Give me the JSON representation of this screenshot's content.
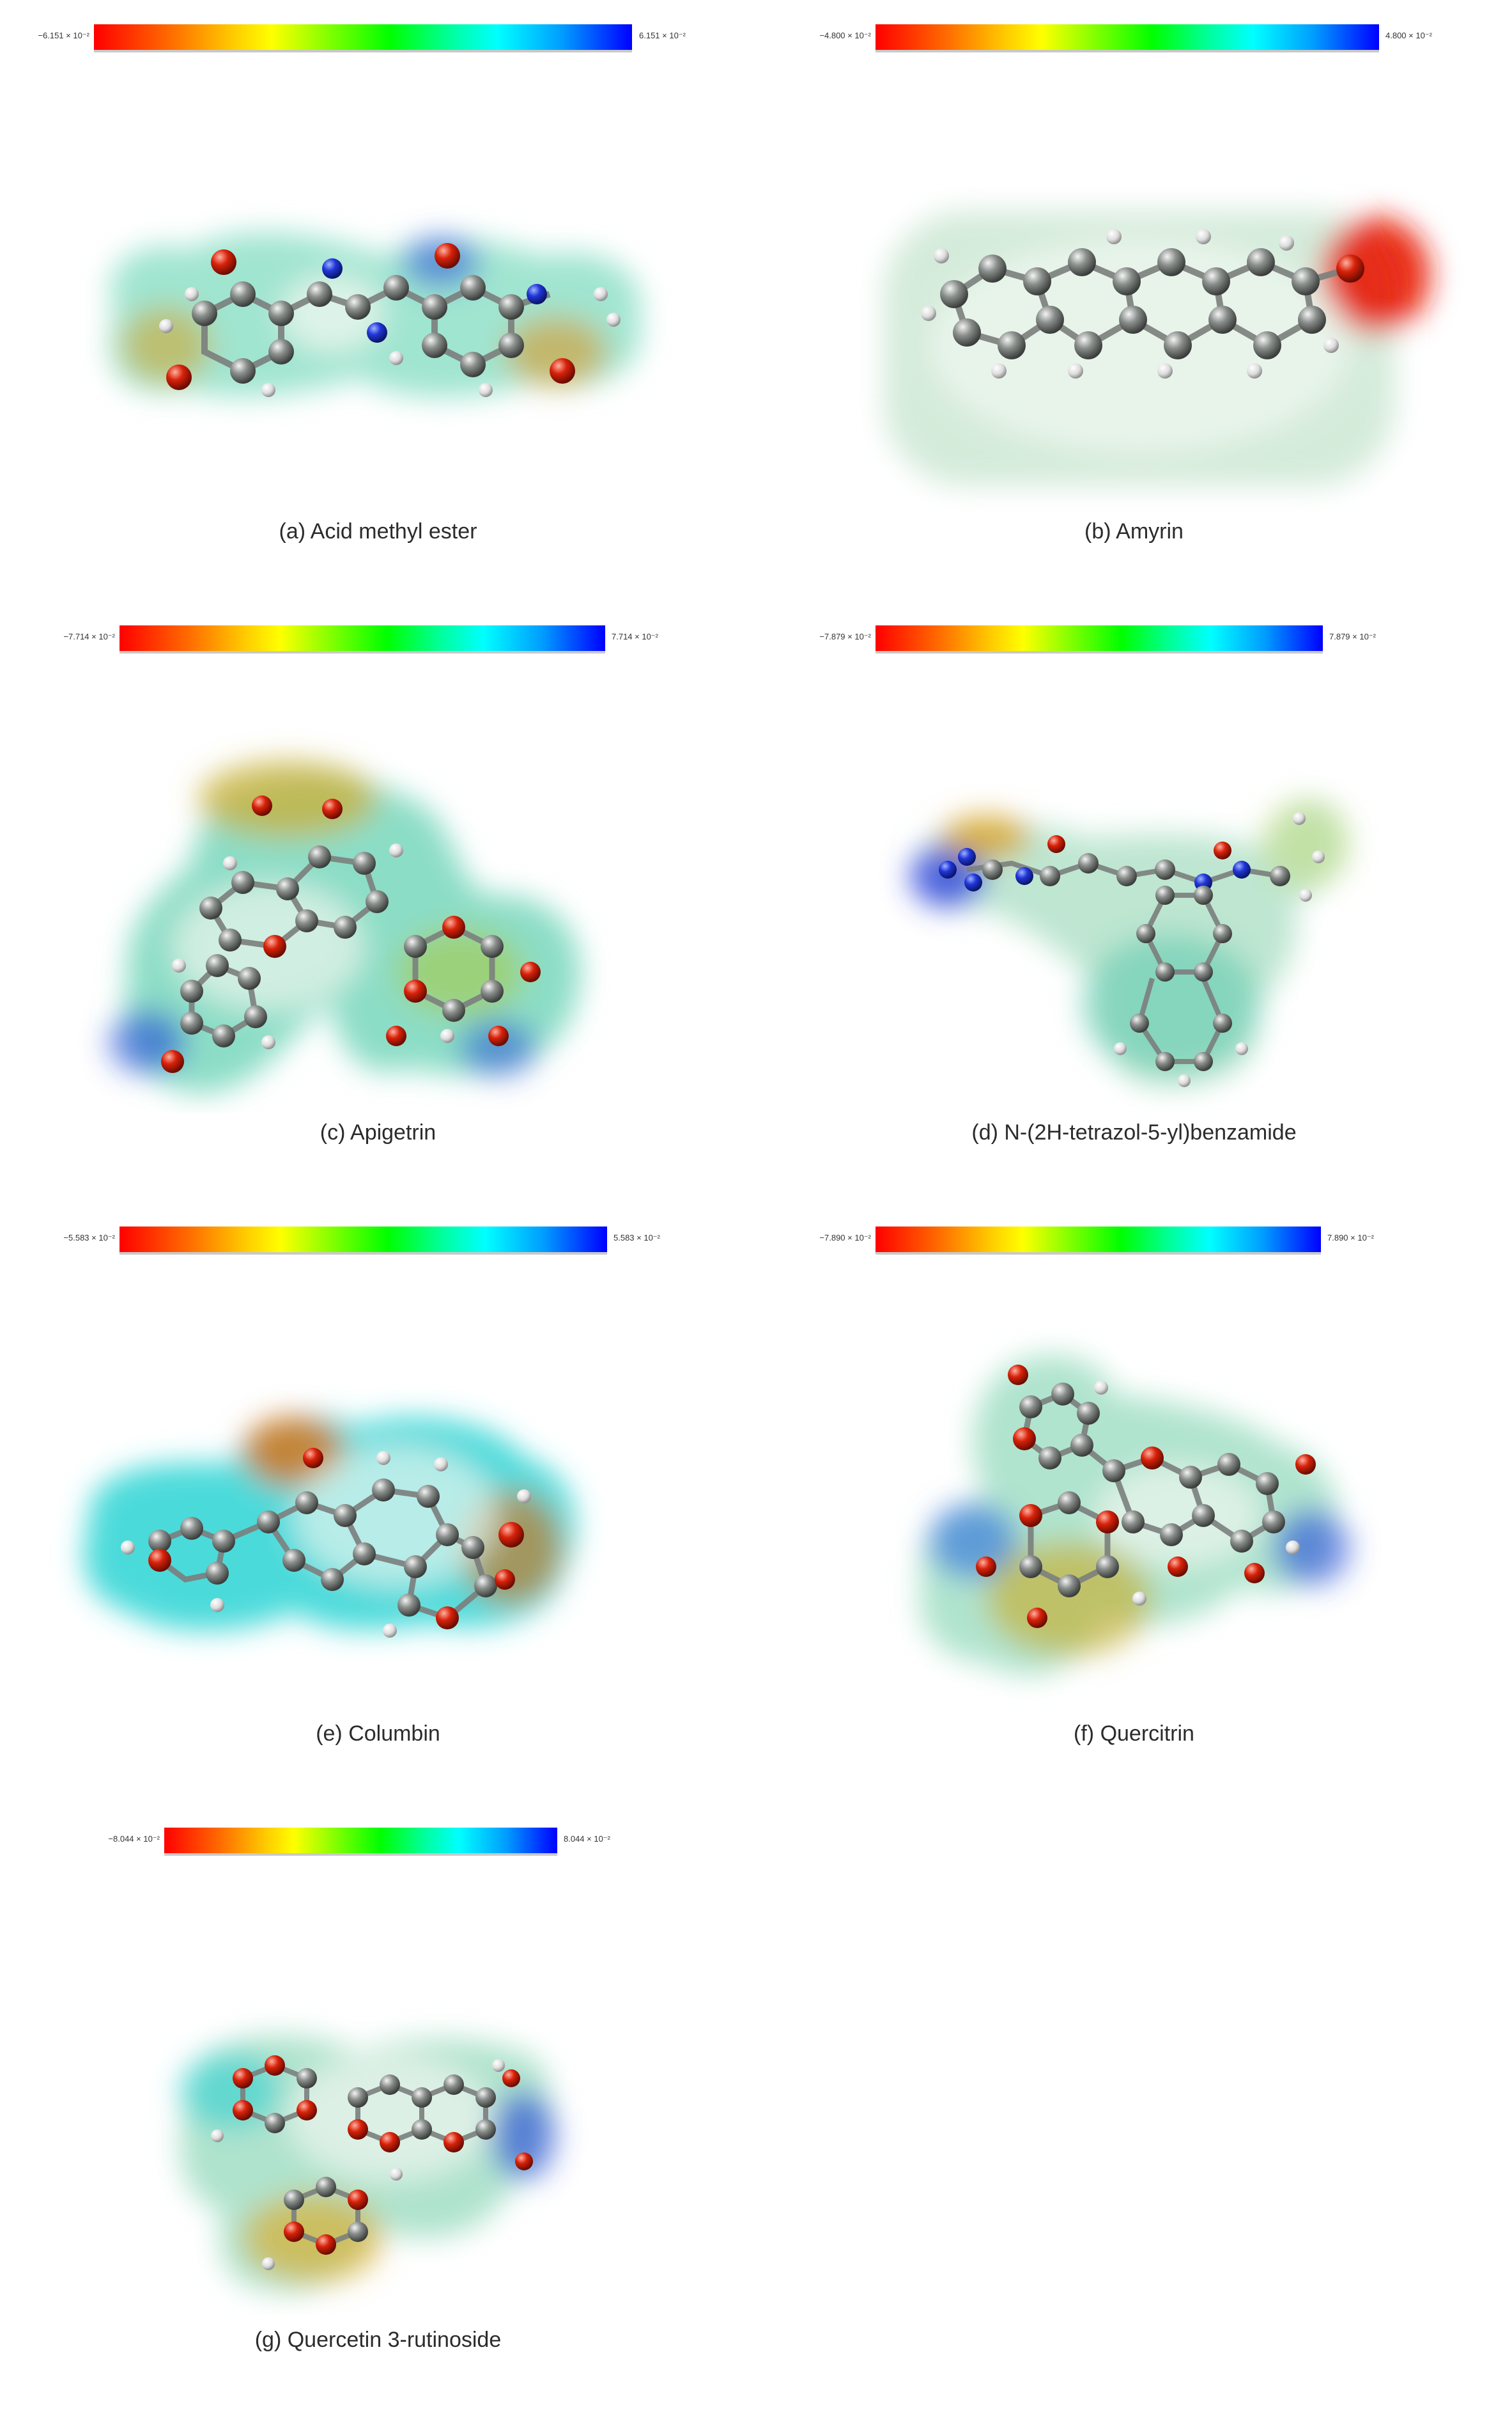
{
  "colormap": [
    "#ff0000",
    "#ffff00",
    "#00ff00",
    "#00ffff",
    "#0000ff"
  ],
  "panels": [
    {
      "caption": "(a) Acid methyl ester",
      "scale_min": "−6.151 × 10⁻²",
      "scale_max": "6.151 × 10⁻²"
    },
    {
      "caption": "(b) Amyrin",
      "scale_min": "−4.800 × 10⁻²",
      "scale_max": "4.800 × 10⁻²"
    },
    {
      "caption": "(c) Apigetrin",
      "scale_min": "−7.714 × 10⁻²",
      "scale_max": "7.714 × 10⁻²"
    },
    {
      "caption": "(d) N-(2H-tetrazol-5-yl)benzamide",
      "scale_min": "−7.879 × 10⁻²",
      "scale_max": "7.879 × 10⁻²"
    },
    {
      "caption": "(e) Columbin",
      "scale_min": "−5.583 × 10⁻²",
      "scale_max": "5.583 × 10⁻²"
    },
    {
      "caption": "(f) Quercitrin",
      "scale_min": "−7.890 × 10⁻²",
      "scale_max": "7.890 × 10⁻²"
    },
    {
      "caption": "(g) Quercetin 3-rutinoside",
      "scale_min": "−8.044 × 10⁻²",
      "scale_max": "8.044 × 10⁻²"
    }
  ]
}
